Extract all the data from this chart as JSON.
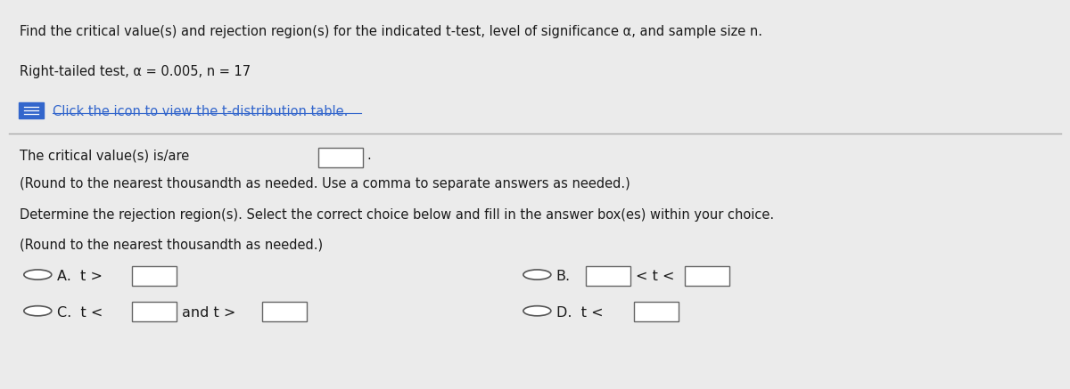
{
  "title_line": "Find the critical value(s) and rejection region(s) for the indicated t-test, level of significance α, and sample size n.",
  "subtitle_line": "Right-tailed test, α = 0.005, n = 17",
  "icon_text": "Click the icon to view the t-distribution table.",
  "critical_value_text": "The critical value(s) is/are",
  "round_note1": "(Round to the nearest thousandth as needed. Use a comma to separate answers as needed.)",
  "determine_text": "Determine the rejection region(s). Select the correct choice below and fill in the answer box(es) within your choice.",
  "round_note2": "(Round to the nearest thousandth as needed.)",
  "bg_color": "#ebebeb",
  "text_color": "#1a1a1a",
  "icon_color": "#3366cc",
  "separator_color": "#aaaaaa",
  "font_size_title": 10.5,
  "font_size_body": 10.5,
  "font_size_options": 11.5
}
